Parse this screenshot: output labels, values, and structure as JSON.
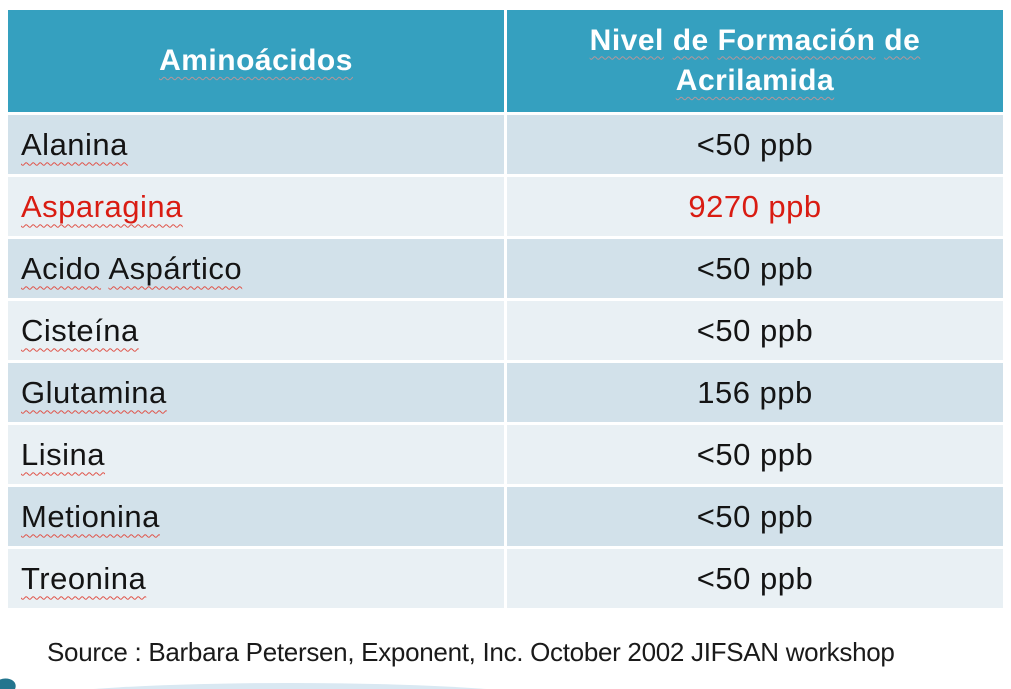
{
  "table": {
    "headers": [
      {
        "label": "Aminoácidos"
      },
      {
        "label": "Nivel de Formación de Acrilamida"
      }
    ],
    "rows": [
      {
        "name": "Alanina",
        "value": "<50 ppb",
        "highlight": false
      },
      {
        "name": "Asparagina",
        "value": "9270 ppb",
        "highlight": true
      },
      {
        "name": "Acido Aspártico",
        "value": "<50 ppb",
        "highlight": false
      },
      {
        "name": "Cisteína",
        "value": "<50 ppb",
        "highlight": false
      },
      {
        "name": "Glutamina",
        "value": "156 ppb",
        "highlight": false
      },
      {
        "name": "Lisina",
        "value": "<50 ppb",
        "highlight": false
      },
      {
        "name": "Metionina",
        "value": "<50 ppb",
        "highlight": false
      },
      {
        "name": "Treonina",
        "value": "<50 ppb",
        "highlight": false
      }
    ]
  },
  "source_note": "Source : Barbara Petersen, Exponent, Inc. October 2002 JIFSAN workshop",
  "colors": {
    "header_bg": "#35A0BF",
    "row_dark": "#D2E1EA",
    "row_light": "#E9F0F4",
    "highlight_red": "#D91C12",
    "text": "#141414",
    "squiggle_red": "#E05248",
    "squiggle_header": "#B5969A"
  }
}
